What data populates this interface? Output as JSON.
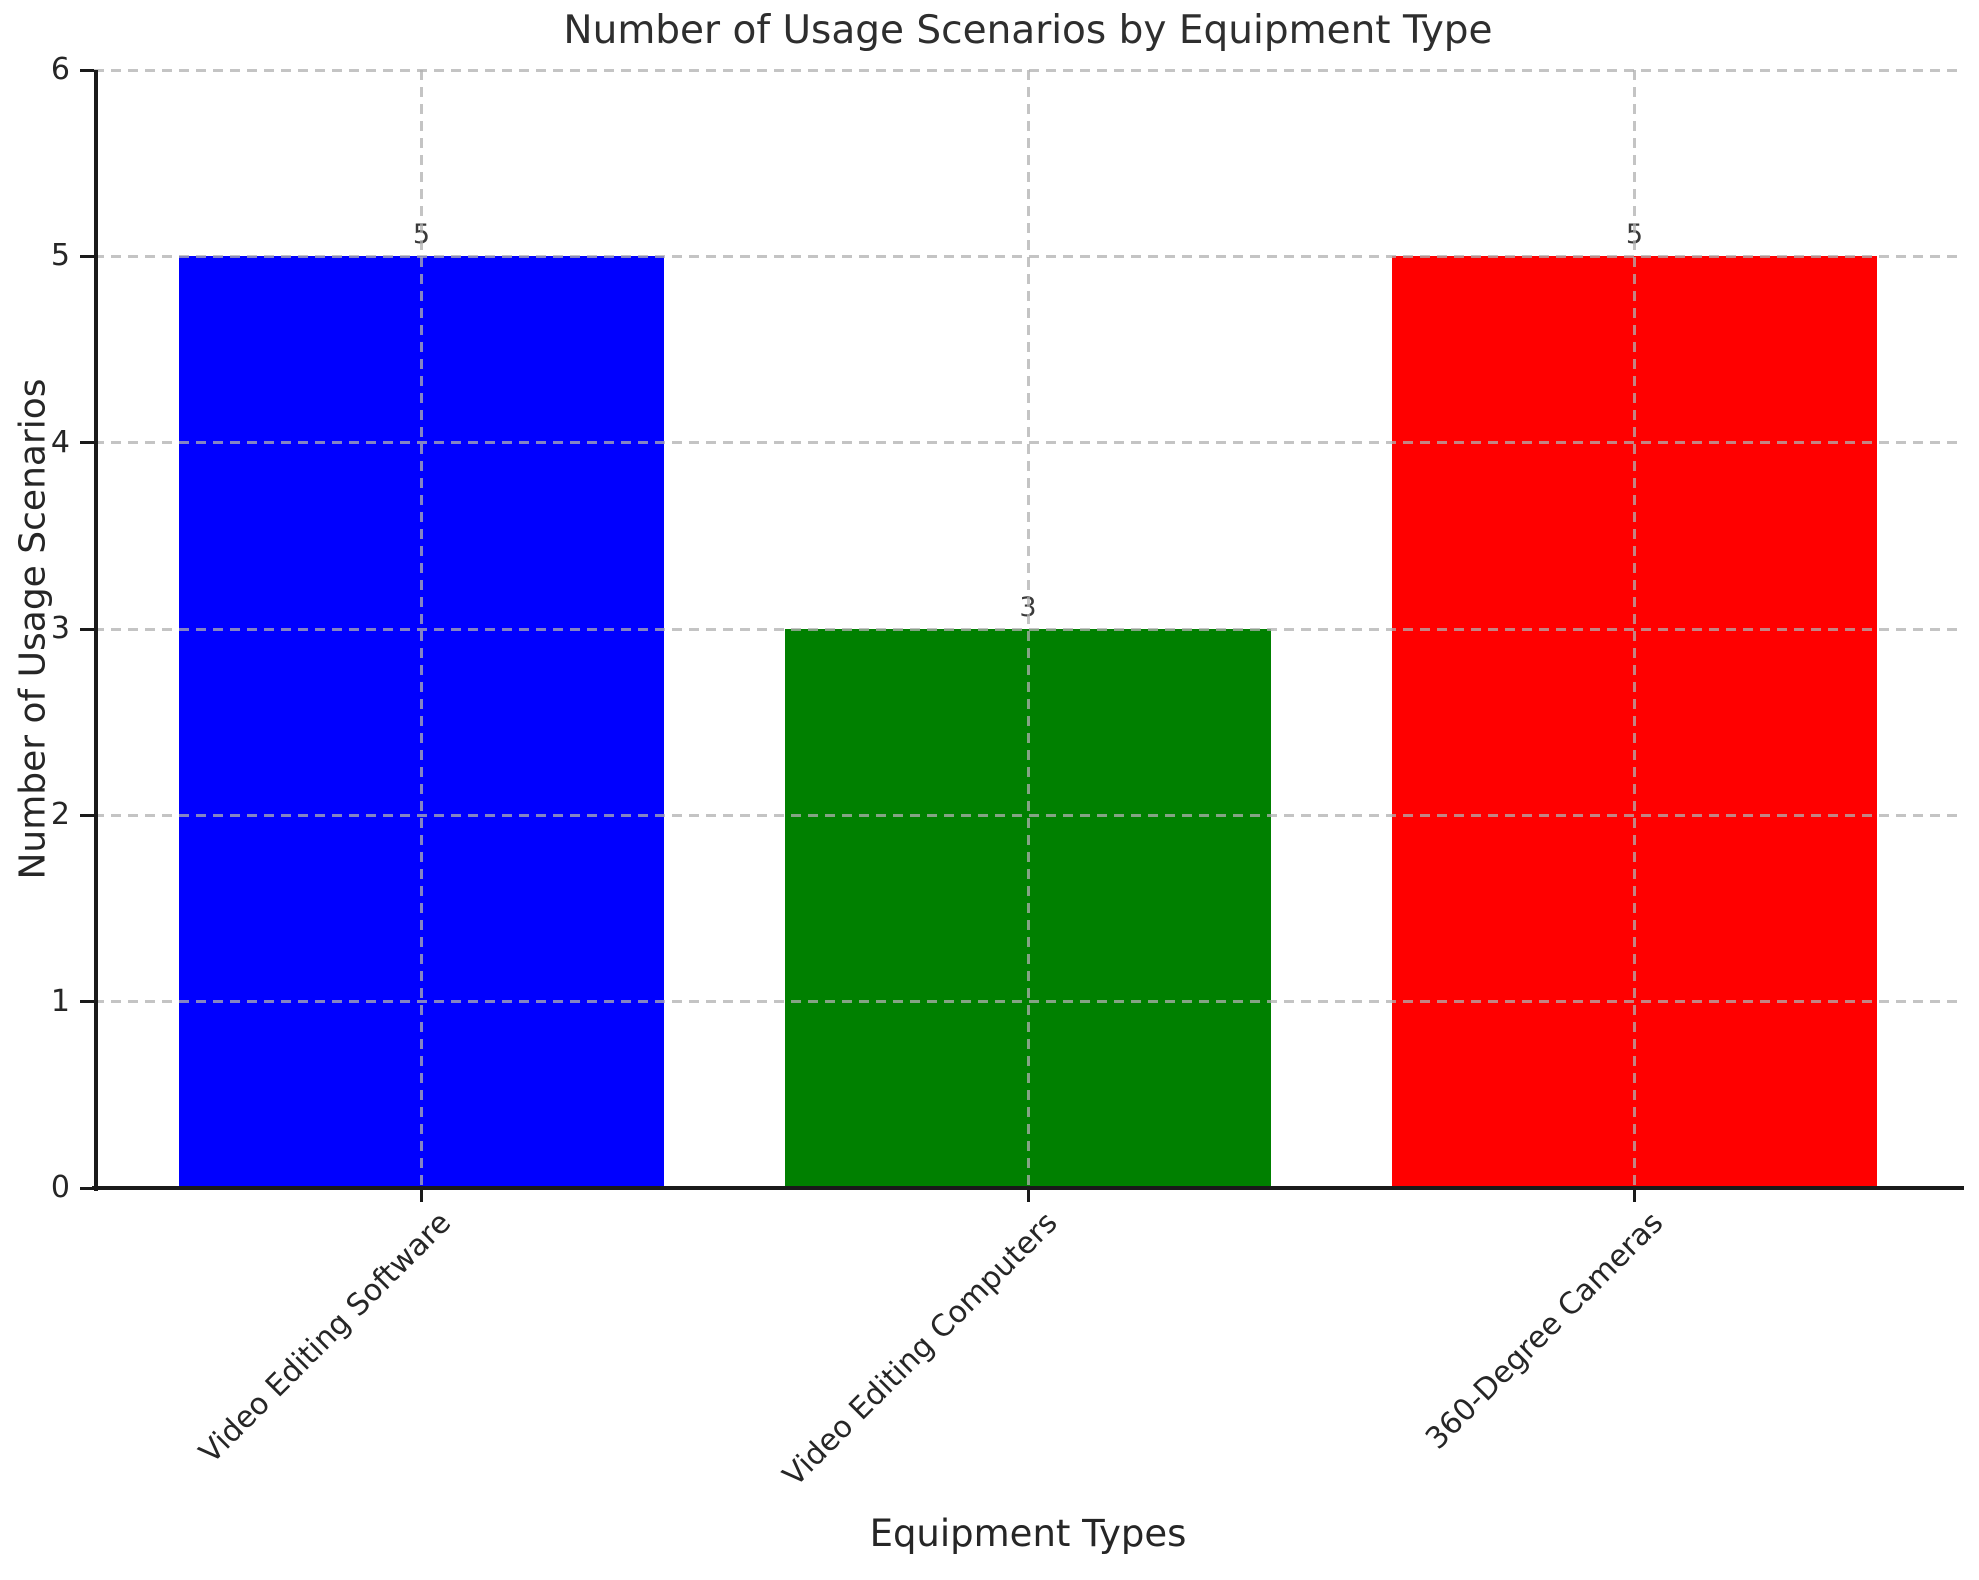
{
  "chart_data": {
    "type": "bar",
    "title": "Number of Usage Scenarios by Equipment Type",
    "xlabel": "Equipment Types",
    "ylabel": "Number of Usage Scenarios",
    "categories": [
      "Video Editing Software",
      "Video Editing Computers",
      "360-Degree Cameras"
    ],
    "values": [
      5,
      3,
      5
    ],
    "bar_value_labels": [
      "5",
      "3",
      "5"
    ],
    "bar_colors": [
      "#0000ff",
      "#008000",
      "#ff0000"
    ],
    "ylim": [
      0,
      6
    ],
    "yticks": [
      0,
      1,
      2,
      3,
      4,
      5,
      6
    ],
    "grid": "dashed",
    "grid_color": "#c4c4c4",
    "x_tick_rotation_deg": 45,
    "legend": "none"
  }
}
